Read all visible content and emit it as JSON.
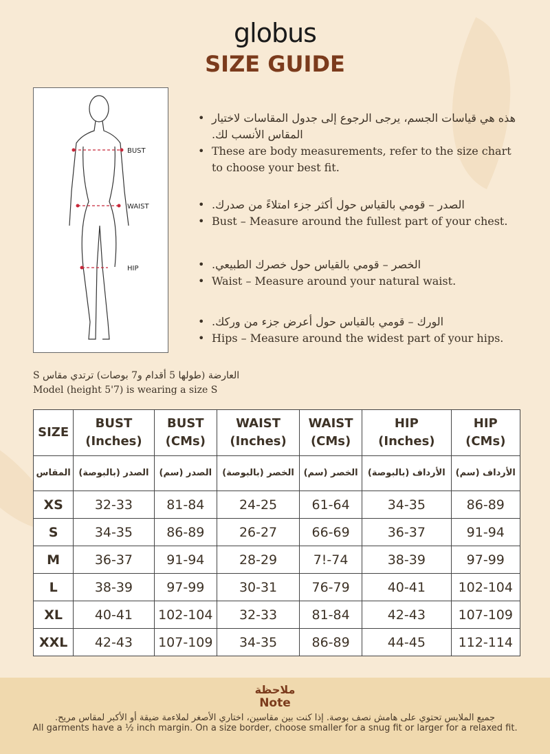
{
  "brand": "globus",
  "title": "SIZE GUIDE",
  "figure": {
    "labels": [
      "BUST",
      "WAIST",
      "HIP"
    ]
  },
  "bullets": [
    {
      "ar": "هذه هي قياسات الجسم، يرجى الرجوع إلى جدول المقاسات لاختيار المقاس الأنسب لك.",
      "en": "These are body measurements, refer to the size chart to choose your best fit."
    },
    {
      "ar": "الصدر – قومي بالقياس حول أكثر جزء امتلاءً من صدرك.",
      "en": "Bust – Measure around the fullest part of your chest."
    },
    {
      "ar": "الخصر – قومي بالقياس حول خصرك الطبيعي.",
      "en": "Waist – Measure around your natural waist."
    },
    {
      "ar": "الورك – قومي بالقياس حول أعرض جزء من وركك.",
      "en": "Hips – Measure around the widest part of your hips."
    }
  ],
  "model": {
    "ar": "العارضة (طولها 5 أقدام و7 بوصات) ترتدي مقاس S",
    "en": "Model (height 5'7) is wearing a size S"
  },
  "table": {
    "headers_en": [
      [
        "SIZE",
        ""
      ],
      [
        "BUST",
        "(Inches)"
      ],
      [
        "BUST",
        "(CMs)"
      ],
      [
        "WAIST",
        "(Inches)"
      ],
      [
        "WAIST",
        "(CMs)"
      ],
      [
        "HIP",
        "(Inches)"
      ],
      [
        "HIP",
        "(CMs)"
      ]
    ],
    "headers_ar": [
      "المقاس",
      "الصدر (بالبوصة)",
      "الصدر (سم)",
      "الخصر (بالبوصة)",
      "الخصر (سم)",
      "الأرداف (بالبوصة)",
      "الأرداف (سم)"
    ],
    "rows": [
      [
        "XS",
        "32-33",
        "81-84",
        "24-25",
        "61-64",
        "34-35",
        "86-89"
      ],
      [
        "S",
        "34-35",
        "86-89",
        "26-27",
        "66-69",
        "36-37",
        "91-94"
      ],
      [
        "M",
        "36-37",
        "91-94",
        "28-29",
        "7!-74",
        "38-39",
        "97-99"
      ],
      [
        "L",
        "38-39",
        "97-99",
        "30-31",
        "76-79",
        "40-41",
        "102-104"
      ],
      [
        "XL",
        "40-41",
        "102-104",
        "32-33",
        "81-84",
        "42-43",
        "107-109"
      ],
      [
        "XXL",
        "42-43",
        "107-109",
        "34-35",
        "86-89",
        "44-45",
        "112-114"
      ]
    ]
  },
  "note": {
    "title_ar": "ملاحظة",
    "title_en": "Note",
    "body_ar": "جميع الملابس تحتوي على هامش نصف بوصة. إذا كنت بين مقاسين، اختاري الأصغر لملاءمة ضيقة أو الأكبر لمقاس مريح.",
    "body_en": "All garments have a ½ inch margin. On a size border, choose smaller for a snug fit or larger for a relaxed fit."
  },
  "colors": {
    "background": "#f8ead5",
    "title": "#7b3b1c",
    "note_band": "#f0d9ae",
    "marker": "#c8283a"
  }
}
